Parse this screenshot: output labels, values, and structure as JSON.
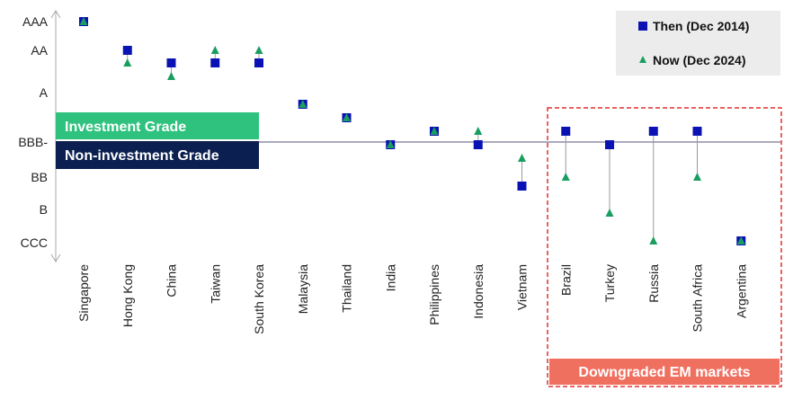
{
  "chart_data": {
    "type": "scatter",
    "rating_scale": [
      "CCC",
      "B",
      "BB",
      "BBB-",
      "BBB",
      "A",
      "AA",
      "AAA"
    ],
    "y_tick_labels": [
      "AAA",
      "AA",
      "A",
      "BBB-",
      "BB",
      "B",
      "CCC"
    ],
    "categories": [
      "Singapore",
      "Hong Kong",
      "China",
      "Taiwan",
      "South Korea",
      "Malaysia",
      "Thailand",
      "India",
      "Philippines",
      "Indonesia",
      "Vietnam",
      "Brazil",
      "Turkey",
      "Russia",
      "South Africa",
      "Argentina"
    ],
    "series": [
      {
        "name": "Then (Dec 2014)",
        "marker": "square",
        "color": "#0a12b4",
        "values": [
          "AAA",
          "AA",
          "AA-",
          "AA-",
          "AA-",
          "A-",
          "BBB+",
          "BBB-",
          "BBB",
          "BBB-",
          "BB-",
          "BBB",
          "BBB-",
          "BBB",
          "BBB",
          "CCC"
        ]
      },
      {
        "name": "Now (Dec 2024)",
        "marker": "triangle",
        "color": "#1a9e60",
        "values": [
          "AAA",
          "AA-",
          "A+",
          "AA",
          "AA",
          "A-",
          "BBB+",
          "BBB-",
          "BBB",
          "BBB",
          "BB+",
          "BB",
          "B",
          "CCC+",
          "BB",
          "CCC"
        ]
      }
    ],
    "threshold": "BBB-",
    "legend": {
      "position": "top-right",
      "background": "#ececec"
    },
    "bands": {
      "investment": {
        "label": "Investment Grade",
        "color": "#2ec27e"
      },
      "non_investment": {
        "label": "Non-investment Grade",
        "color": "#0b2050"
      }
    },
    "callout": {
      "label": "Downgraded EM markets",
      "color": "#f07060",
      "border_color": "#e03030"
    },
    "threshold_line_color": "#8e8ea8",
    "connector_color": "#9a9a9a",
    "axis_color": "#aaaaaa"
  }
}
